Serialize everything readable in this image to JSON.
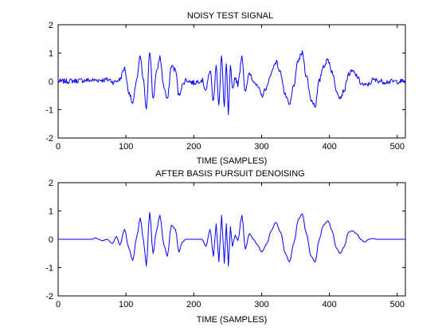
{
  "figure": {
    "background": "#ffffff",
    "line_color": "#0000ff"
  },
  "chart_data": [
    {
      "type": "line",
      "title": "NOISY TEST SIGNAL",
      "xlabel": "TIME (SAMPLES)",
      "ylabel": "",
      "xlim": [
        0,
        512
      ],
      "ylim": [
        -2,
        2
      ],
      "xticks": [
        0,
        100,
        200,
        300,
        400,
        500
      ],
      "yticks": [
        -2,
        -1,
        0,
        1,
        2
      ],
      "grid": false,
      "legend": "none",
      "series": [
        {
          "noise_amplitude": 0.09,
          "envelope": [
            {
              "x": 0,
              "y": 0
            },
            {
              "x": 50,
              "y": 0.04
            },
            {
              "x": 65,
              "y": 0.05
            },
            {
              "x": 75,
              "y": 0.06
            },
            {
              "x": 82,
              "y": -0.03
            },
            {
              "x": 90,
              "y": 0.05
            },
            {
              "x": 98,
              "y": 0.45
            },
            {
              "x": 104,
              "y": -0.35
            },
            {
              "x": 110,
              "y": -0.8
            },
            {
              "x": 116,
              "y": 0.1
            },
            {
              "x": 121,
              "y": 0.85
            },
            {
              "x": 126,
              "y": 0.0
            },
            {
              "x": 130,
              "y": -1.05
            },
            {
              "x": 135,
              "y": 1.1
            },
            {
              "x": 140,
              "y": -0.6
            },
            {
              "x": 145,
              "y": 0.3
            },
            {
              "x": 150,
              "y": 0.85
            },
            {
              "x": 156,
              "y": -0.2
            },
            {
              "x": 161,
              "y": -0.65
            },
            {
              "x": 167,
              "y": 0.55
            },
            {
              "x": 173,
              "y": 0.4
            },
            {
              "x": 178,
              "y": -0.5
            },
            {
              "x": 183,
              "y": -0.15
            },
            {
              "x": 188,
              "y": 0.05
            },
            {
              "x": 200,
              "y": -0.05
            },
            {
              "x": 212,
              "y": 0.05
            },
            {
              "x": 218,
              "y": -0.3
            },
            {
              "x": 224,
              "y": 0.4
            },
            {
              "x": 229,
              "y": -0.7
            },
            {
              "x": 233,
              "y": 0.6
            },
            {
              "x": 237,
              "y": -0.85
            },
            {
              "x": 241,
              "y": 0.9
            },
            {
              "x": 245,
              "y": -0.9
            },
            {
              "x": 248,
              "y": 0.6
            },
            {
              "x": 251,
              "y": -1.15
            },
            {
              "x": 254,
              "y": 0.5
            },
            {
              "x": 257,
              "y": -0.3
            },
            {
              "x": 261,
              "y": 0.15
            },
            {
              "x": 265,
              "y": -0.1
            },
            {
              "x": 271,
              "y": 0.9
            },
            {
              "x": 276,
              "y": -0.4
            },
            {
              "x": 282,
              "y": 0.3
            },
            {
              "x": 288,
              "y": 0.05
            },
            {
              "x": 294,
              "y": -0.2
            },
            {
              "x": 300,
              "y": -0.5
            },
            {
              "x": 308,
              "y": -0.2
            },
            {
              "x": 314,
              "y": 0.3
            },
            {
              "x": 321,
              "y": 0.7
            },
            {
              "x": 328,
              "y": 0.3
            },
            {
              "x": 335,
              "y": -0.5
            },
            {
              "x": 341,
              "y": -0.85
            },
            {
              "x": 348,
              "y": -0.1
            },
            {
              "x": 354,
              "y": 0.75
            },
            {
              "x": 360,
              "y": 1.0
            },
            {
              "x": 366,
              "y": 0.2
            },
            {
              "x": 373,
              "y": -0.65
            },
            {
              "x": 379,
              "y": -0.85
            },
            {
              "x": 385,
              "y": 0.0
            },
            {
              "x": 391,
              "y": 0.55
            },
            {
              "x": 398,
              "y": 0.75
            },
            {
              "x": 404,
              "y": 0.35
            },
            {
              "x": 410,
              "y": -0.3
            },
            {
              "x": 416,
              "y": -0.55
            },
            {
              "x": 422,
              "y": -0.3
            },
            {
              "x": 428,
              "y": 0.25
            },
            {
              "x": 434,
              "y": 0.35
            },
            {
              "x": 440,
              "y": 0.2
            },
            {
              "x": 446,
              "y": -0.05
            },
            {
              "x": 452,
              "y": -0.15
            },
            {
              "x": 458,
              "y": -0.1
            },
            {
              "x": 464,
              "y": 0.05
            },
            {
              "x": 470,
              "y": 0.03
            },
            {
              "x": 480,
              "y": -0.01
            },
            {
              "x": 512,
              "y": 0
            }
          ]
        }
      ]
    },
    {
      "type": "line",
      "title": "AFTER BASIS PURSUIT DENOISING",
      "xlabel": "TIME (SAMPLES)",
      "ylabel": "",
      "xlim": [
        0,
        512
      ],
      "ylim": [
        -2,
        2
      ],
      "xticks": [
        0,
        100,
        200,
        300,
        400,
        500
      ],
      "yticks": [
        -2,
        -1,
        0,
        1,
        2
      ],
      "grid": false,
      "legend": "none",
      "series": [
        {
          "noise_amplitude": 0,
          "envelope": [
            {
              "x": 0,
              "y": 0
            },
            {
              "x": 50,
              "y": 0.0
            },
            {
              "x": 55,
              "y": 0.05
            },
            {
              "x": 60,
              "y": 0.0
            },
            {
              "x": 65,
              "y": -0.05
            },
            {
              "x": 72,
              "y": 0.0
            },
            {
              "x": 80,
              "y": -0.15
            },
            {
              "x": 86,
              "y": 0.1
            },
            {
              "x": 91,
              "y": -0.2
            },
            {
              "x": 98,
              "y": 0.35
            },
            {
              "x": 104,
              "y": -0.3
            },
            {
              "x": 110,
              "y": -0.75
            },
            {
              "x": 116,
              "y": 0.1
            },
            {
              "x": 121,
              "y": 0.75
            },
            {
              "x": 126,
              "y": -0.05
            },
            {
              "x": 130,
              "y": -0.95
            },
            {
              "x": 135,
              "y": 0.95
            },
            {
              "x": 140,
              "y": -0.5
            },
            {
              "x": 145,
              "y": 0.3
            },
            {
              "x": 150,
              "y": 0.85
            },
            {
              "x": 156,
              "y": -0.2
            },
            {
              "x": 161,
              "y": -0.6
            },
            {
              "x": 167,
              "y": 0.5
            },
            {
              "x": 173,
              "y": 0.35
            },
            {
              "x": 178,
              "y": -0.45
            },
            {
              "x": 183,
              "y": -0.1
            },
            {
              "x": 188,
              "y": 0.0
            },
            {
              "x": 200,
              "y": 0.0
            },
            {
              "x": 212,
              "y": 0.0
            },
            {
              "x": 218,
              "y": -0.25
            },
            {
              "x": 224,
              "y": 0.35
            },
            {
              "x": 229,
              "y": -0.6
            },
            {
              "x": 233,
              "y": 0.55
            },
            {
              "x": 237,
              "y": -0.8
            },
            {
              "x": 241,
              "y": 0.85
            },
            {
              "x": 245,
              "y": -0.85
            },
            {
              "x": 248,
              "y": 0.55
            },
            {
              "x": 251,
              "y": -0.95
            },
            {
              "x": 254,
              "y": 0.45
            },
            {
              "x": 257,
              "y": -0.25
            },
            {
              "x": 261,
              "y": 0.15
            },
            {
              "x": 265,
              "y": -0.05
            },
            {
              "x": 271,
              "y": 0.85
            },
            {
              "x": 276,
              "y": -0.35
            },
            {
              "x": 282,
              "y": 0.2
            },
            {
              "x": 288,
              "y": 0.0
            },
            {
              "x": 294,
              "y": -0.2
            },
            {
              "x": 300,
              "y": -0.45
            },
            {
              "x": 308,
              "y": -0.15
            },
            {
              "x": 314,
              "y": 0.3
            },
            {
              "x": 321,
              "y": 0.6
            },
            {
              "x": 328,
              "y": 0.25
            },
            {
              "x": 335,
              "y": -0.5
            },
            {
              "x": 341,
              "y": -0.8
            },
            {
              "x": 348,
              "y": -0.1
            },
            {
              "x": 354,
              "y": 0.7
            },
            {
              "x": 360,
              "y": 0.9
            },
            {
              "x": 366,
              "y": 0.2
            },
            {
              "x": 373,
              "y": -0.6
            },
            {
              "x": 379,
              "y": -0.8
            },
            {
              "x": 385,
              "y": 0.0
            },
            {
              "x": 391,
              "y": 0.5
            },
            {
              "x": 398,
              "y": 0.65
            },
            {
              "x": 404,
              "y": 0.3
            },
            {
              "x": 410,
              "y": -0.3
            },
            {
              "x": 416,
              "y": -0.5
            },
            {
              "x": 422,
              "y": -0.25
            },
            {
              "x": 428,
              "y": 0.25
            },
            {
              "x": 434,
              "y": 0.3
            },
            {
              "x": 440,
              "y": 0.2
            },
            {
              "x": 446,
              "y": 0.0
            },
            {
              "x": 452,
              "y": -0.1
            },
            {
              "x": 458,
              "y": 0.0
            },
            {
              "x": 464,
              "y": 0.03
            },
            {
              "x": 470,
              "y": 0.0
            },
            {
              "x": 480,
              "y": 0.0
            },
            {
              "x": 512,
              "y": 0
            }
          ]
        }
      ]
    }
  ]
}
